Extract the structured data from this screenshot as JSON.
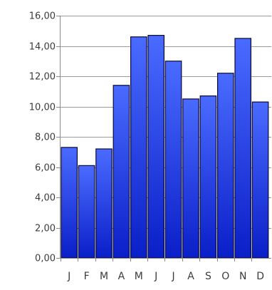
{
  "chart_data": {
    "type": "bar",
    "title": "",
    "xlabel": "",
    "ylabel": "",
    "categories": [
      "J",
      "F",
      "M",
      "A",
      "M",
      "J",
      "J",
      "A",
      "S",
      "O",
      "N",
      "D"
    ],
    "values": [
      7.3,
      6.1,
      7.2,
      11.4,
      14.6,
      14.7,
      13.0,
      10.5,
      10.7,
      12.2,
      14.5,
      10.3
    ],
    "ylim": [
      0,
      16
    ],
    "y_ticks": [
      0,
      2,
      4,
      6,
      8,
      10,
      12,
      14,
      16
    ],
    "y_tick_labels": [
      "0,00",
      "2,00",
      "4,00",
      "6,00",
      "8,00",
      "10,00",
      "12,00",
      "14,00",
      "16,00"
    ],
    "grid": true,
    "legend": "none",
    "colors": {
      "bar_top": "#4a6bff",
      "bar_bottom": "#0a1fc8",
      "bar_outline": "#0a0a3a",
      "grid": "#9a9a9a",
      "axis": "#8a8a8a"
    }
  }
}
